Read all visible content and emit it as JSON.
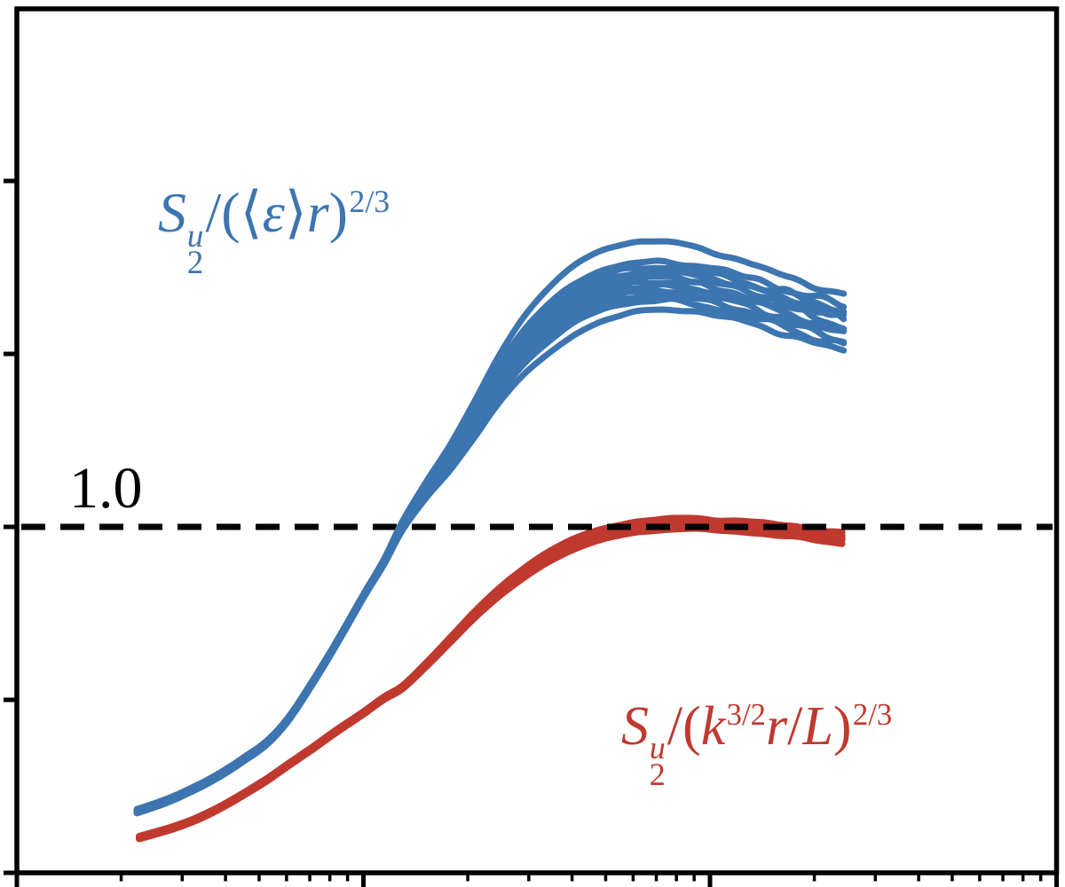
{
  "annotations": {
    "ref_label": "1.0",
    "blue_label": {
      "S": "S",
      "sup_u": "u",
      "sub_2": "2",
      "slash": "/",
      "open": "(",
      "lang": "⟨",
      "eps": "ε",
      "rang": "⟩",
      "r": "r",
      "close": ")",
      "exp": "2/3"
    },
    "red_label": {
      "S": "S",
      "sup_u": "u",
      "sub_2": "2",
      "slash": "/",
      "open": "(",
      "k": "k",
      "exp_k": "3/2",
      "r": "r",
      "slash2": "/",
      "L": "L",
      "close": ")",
      "exp": "2/3"
    }
  },
  "colors": {
    "blue": "#3c75b0",
    "red": "#c0392f",
    "axis": "#000000",
    "dash": "#000000"
  },
  "chart_data": {
    "type": "line",
    "title": "",
    "x_axis": {
      "scale": "log",
      "range": [
        1,
        1000
      ],
      "decades": 3,
      "label": "",
      "tick_labels": "none",
      "minor_ticks": "log positions 2-9 each decade",
      "x_unit": "log10(r), curves span log10 0.346-2.391"
    },
    "y_axis": {
      "scale": "linear",
      "range": [
        0,
        2.49
      ],
      "tick_step": 0.5,
      "label": "",
      "tick_labels": "none"
    },
    "reference_line": {
      "y": 1.0,
      "style": "dashed",
      "color": "#000000",
      "label": "1.0"
    },
    "legend_position": "inline text annotations",
    "grid": false,
    "series": [
      {
        "name": "S2^u/(k^(3/2) r/L)^(2/3)",
        "color": "#c0392f",
        "stroke_width": 7.5,
        "plateau_value": 1.0,
        "base": [
          [
            0.353,
            0.102
          ],
          [
            0.4,
            0.115
          ],
          [
            0.45,
            0.13
          ],
          [
            0.5,
            0.148
          ],
          [
            0.55,
            0.17
          ],
          [
            0.6,
            0.196
          ],
          [
            0.65,
            0.225
          ],
          [
            0.72,
            0.268
          ],
          [
            0.78,
            0.31
          ],
          [
            0.85,
            0.358
          ],
          [
            0.92,
            0.408
          ],
          [
            1.0,
            0.462
          ],
          [
            1.06,
            0.505
          ],
          [
            1.111,
            0.535
          ],
          [
            1.18,
            0.6
          ],
          [
            1.25,
            0.672
          ],
          [
            1.32,
            0.745
          ],
          [
            1.39,
            0.81
          ],
          [
            1.46,
            0.865
          ],
          [
            1.53,
            0.912
          ],
          [
            1.6,
            0.948
          ],
          [
            1.67,
            0.974
          ],
          [
            1.74,
            0.992
          ],
          [
            1.82,
            1.004
          ],
          [
            1.9,
            1.01
          ],
          [
            1.98,
            1.009
          ],
          [
            2.06,
            1.004
          ],
          [
            2.14,
            0.998
          ],
          [
            2.22,
            0.989
          ],
          [
            2.3,
            0.979
          ],
          [
            2.391,
            0.968
          ]
        ],
        "curves": [
          {
            "o_early": 0.004,
            "o_plat": 0.014,
            "noise": 0.006
          },
          {
            "o_early": 0.002,
            "o_plat": 0.008,
            "noise": 0.005
          },
          {
            "o_early": 0.0,
            "o_plat": 0.002,
            "noise": 0.007
          },
          {
            "o_early": -0.002,
            "o_plat": -0.004,
            "noise": 0.005
          },
          {
            "o_early": -0.004,
            "o_plat": -0.01,
            "noise": 0.006
          },
          {
            "o_early": -0.001,
            "o_plat": -0.016,
            "noise": 0.004
          }
        ]
      },
      {
        "name": "S2^u/((eps) r)^(2/3)",
        "color": "#3c75b0",
        "stroke_width": 7,
        "plateau_value": 1.7,
        "base": [
          [
            0.346,
            0.178
          ],
          [
            0.4,
            0.196
          ],
          [
            0.45,
            0.215
          ],
          [
            0.5,
            0.238
          ],
          [
            0.55,
            0.263
          ],
          [
            0.6,
            0.292
          ],
          [
            0.65,
            0.325
          ],
          [
            0.72,
            0.375
          ],
          [
            0.78,
            0.44
          ],
          [
            0.85,
            0.545
          ],
          [
            0.92,
            0.66
          ],
          [
            1.0,
            0.8
          ],
          [
            1.06,
            0.9
          ],
          [
            1.111,
            1.0
          ],
          [
            1.18,
            1.105
          ],
          [
            1.25,
            1.2
          ],
          [
            1.32,
            1.31
          ],
          [
            1.39,
            1.425
          ],
          [
            1.46,
            1.52
          ],
          [
            1.53,
            1.59
          ],
          [
            1.6,
            1.645
          ],
          [
            1.67,
            1.682
          ],
          [
            1.74,
            1.703
          ],
          [
            1.82,
            1.713
          ],
          [
            1.9,
            1.712
          ],
          [
            1.98,
            1.7
          ],
          [
            2.06,
            1.682
          ],
          [
            2.14,
            1.66
          ],
          [
            2.22,
            1.636
          ],
          [
            2.3,
            1.61
          ],
          [
            2.391,
            1.585
          ]
        ],
        "curves": [
          {
            "o_early": 0.006,
            "o_plat": 0.085,
            "bump": [
              0.028,
              1.78,
              0.3
            ],
            "noise": 0.008
          },
          {
            "o_early": 0.004,
            "o_plat": 0.052,
            "noise": 0.014
          },
          {
            "o_early": 0.002,
            "o_plat": 0.038,
            "noise": 0.018
          },
          {
            "o_early": 0.0,
            "o_plat": 0.024,
            "noise": 0.012
          },
          {
            "o_early": -0.002,
            "o_plat": 0.01,
            "noise": 0.016
          },
          {
            "o_early": 0.003,
            "o_plat": -0.004,
            "noise": 0.019
          },
          {
            "o_early": -0.004,
            "o_plat": -0.018,
            "noise": 0.013
          },
          {
            "o_early": 0.001,
            "o_plat": -0.032,
            "noise": 0.017
          },
          {
            "o_early": -0.003,
            "o_plat": -0.046,
            "noise": 0.012
          },
          {
            "o_early": -0.006,
            "o_plat": -0.06,
            "noise": 0.015
          },
          {
            "o_early": -0.005,
            "o_plat": -0.078,
            "bump": [
              -0.018,
              1.6,
              0.28
            ],
            "noise": 0.01
          }
        ]
      }
    ]
  }
}
